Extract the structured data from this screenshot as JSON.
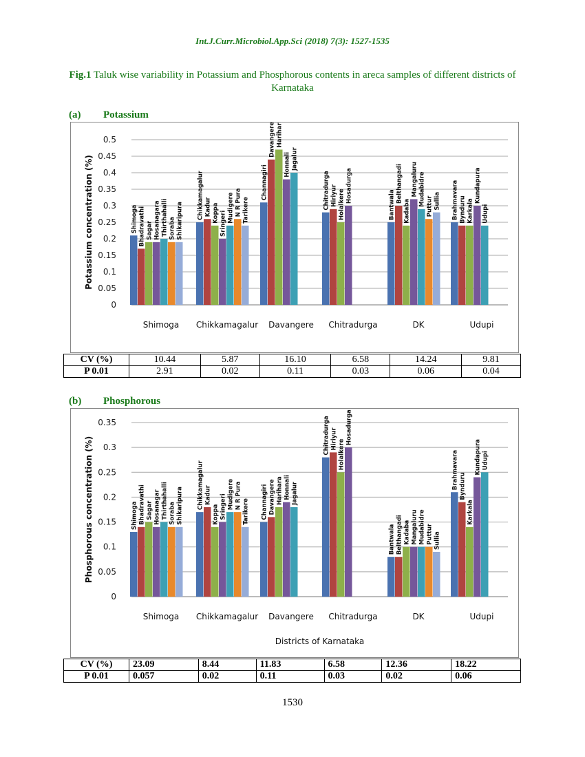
{
  "header": "Int.J.Curr.Microbiol.App.Sci (2018) 7(3): 1527-1535",
  "figure": {
    "label": "Fig.1",
    "caption": "Taluk wise variability in Potassium and Phosphorous contents in areca samples of different districts of Karnataka"
  },
  "colors": [
    "#4a72b0",
    "#b04440",
    "#8eb04a",
    "#75579a",
    "#3da0b4",
    "#e8892c",
    "#96acd8"
  ],
  "chart_data": [
    {
      "type": "bar",
      "section_letter": "(a)",
      "section_name": "Potassium",
      "ylabel": "Potassium concentration (%)",
      "xlabel": "",
      "ylim": [
        0,
        0.5
      ],
      "yticks": [
        "0",
        "0.05",
        "0.1",
        "0.15",
        "0.2",
        "0.25",
        "0.3",
        "0.35",
        "0.4",
        "0.45",
        "0.5"
      ],
      "grid": true,
      "groups": [
        {
          "district": "Shimoga",
          "taluks": [
            "Shimoga",
            "Bhadravathi",
            "Sagar",
            "Hosanagara",
            "Thirthahalli",
            "Soraba",
            "Shikaripura"
          ],
          "values": [
            0.21,
            0.17,
            0.19,
            0.19,
            0.2,
            0.19,
            0.19
          ]
        },
        {
          "district": "Chikkamagalur",
          "taluks": [
            "Chikkamagalur",
            "Kadur",
            "Koppa",
            "Sringeri",
            "Mudigere",
            "N R Pura",
            "Tarikere"
          ],
          "values": [
            0.25,
            0.26,
            0.24,
            0.2,
            0.24,
            0.26,
            0.24
          ]
        },
        {
          "district": "Davangere",
          "taluks": [
            "Channagiri",
            "Davangere",
            "Harihara",
            "Honnali",
            "Jagalur"
          ],
          "values": [
            0.31,
            0.44,
            0.47,
            0.38,
            0.4
          ]
        },
        {
          "district": "Chitradurga",
          "taluks": [
            "Chitradurga",
            "Hiriyur",
            "Holalkere",
            "Hosadurga"
          ],
          "values": [
            0.28,
            0.29,
            0.25,
            0.3
          ]
        },
        {
          "district": "DK",
          "taluks": [
            "Bantwala",
            "Belthangadi",
            "Kadaba",
            "Mangaluru",
            "Mudabidre",
            "Puttur",
            "Sullia"
          ],
          "values": [
            0.25,
            0.3,
            0.24,
            0.32,
            0.29,
            0.26,
            0.28
          ]
        },
        {
          "district": "Udupi",
          "taluks": [
            "Brahmavara",
            "Bynduru",
            "Karkala",
            "Kundapura",
            "Udupi"
          ],
          "values": [
            0.25,
            0.24,
            0.24,
            0.3,
            0.24
          ]
        }
      ],
      "stats": {
        "cv_label": "CV (%)",
        "p_label": "P 0.01",
        "cv": [
          "10.44",
          "5.87",
          "16.10",
          "6.58",
          "14.24",
          "9.81"
        ],
        "p": [
          "2.91",
          "0.02",
          "0.11",
          "0.03",
          "0.06",
          "0.04"
        ]
      }
    },
    {
      "type": "bar",
      "section_letter": "(b)",
      "section_name": "Phosphorous",
      "ylabel": "Phosphorous concentration (%)",
      "xlabel": "Districts of Karnataka",
      "ylim": [
        0,
        0.35
      ],
      "yticks": [
        "0",
        "0.05",
        "0.1",
        "0.15",
        "0.2",
        "0.25",
        "0.3",
        "0.35"
      ],
      "grid": true,
      "groups": [
        {
          "district": "Shimoga",
          "taluks": [
            "Shimoga",
            "Bhadravathi",
            "Sagar",
            "Hosanagar",
            "Thirthahalli",
            "Soraba",
            "Shikaripura"
          ],
          "values": [
            0.13,
            0.14,
            0.15,
            0.14,
            0.15,
            0.14,
            0.14
          ]
        },
        {
          "district": "Chikkamagalur",
          "taluks": [
            "Chikkamagalur",
            "Kadur",
            "Koppa",
            "Sringeri",
            "Mudigere",
            "N R Pura",
            "Tarikere"
          ],
          "values": [
            0.17,
            0.18,
            0.14,
            0.15,
            0.17,
            0.17,
            0.14
          ]
        },
        {
          "district": "Davangere",
          "taluks": [
            "Channagiri",
            "Davangere",
            "Harihara",
            "Honnali",
            "Jagalur"
          ],
          "values": [
            0.15,
            0.16,
            0.18,
            0.19,
            0.18
          ]
        },
        {
          "district": "Chitradurga",
          "taluks": [
            "Chitradurga",
            "Hiriyur",
            "Holalkere",
            "Hosadurga"
          ],
          "values": [
            0.28,
            0.29,
            0.25,
            0.3
          ]
        },
        {
          "district": "DK",
          "taluks": [
            "Bantwala",
            "Belthangadi",
            "Kadaba",
            "Mangaluru",
            "Mudabidre",
            "Puttur",
            "Sullia"
          ],
          "values": [
            0.08,
            0.08,
            0.1,
            0.1,
            0.1,
            0.1,
            0.09
          ]
        },
        {
          "district": "Udupi",
          "taluks": [
            "Brahmavara",
            "Bynduru",
            "Karkala",
            "Kundapura",
            "Udupi"
          ],
          "values": [
            0.21,
            0.19,
            0.14,
            0.24,
            0.25
          ]
        }
      ],
      "stats": {
        "cv_label": "CV (%)",
        "p_label": "P 0.01",
        "cv": [
          "23.09",
          "8.44",
          "11.83",
          "6.58",
          "12.36",
          "18.22"
        ],
        "p": [
          "0.057",
          "0.02",
          "0.11",
          "0.03",
          "0.02",
          "0.06"
        ]
      }
    }
  ],
  "page_number": "1530"
}
